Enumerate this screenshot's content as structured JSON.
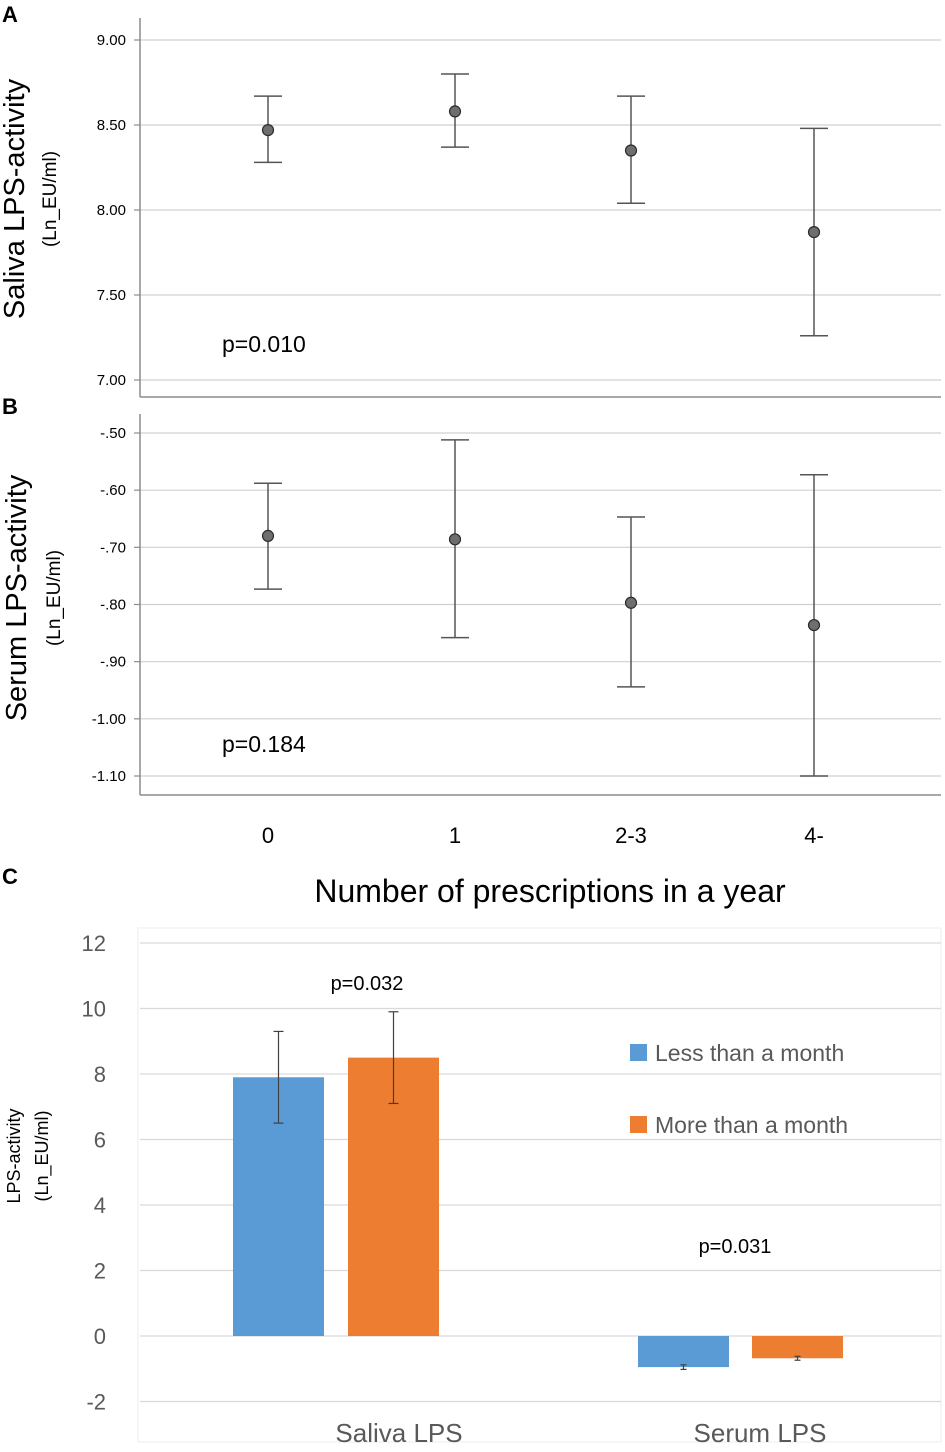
{
  "chart_data": [
    {
      "panel": "A",
      "type": "scatter",
      "subtype": "error-bar plot",
      "ylabel": "Saliva LPS-activity",
      "ylabel_unit": "(Ln_EU/ml)",
      "ylim": [
        7.0,
        9.1
      ],
      "yticks": [
        "7.00",
        "7.50",
        "8.00",
        "8.50",
        "9.00"
      ],
      "categories": [
        "0",
        "1",
        "2-3",
        "4-"
      ],
      "points": [
        {
          "x": "0",
          "mean": 8.47,
          "low": 8.28,
          "high": 8.67
        },
        {
          "x": "1",
          "mean": 8.58,
          "low": 8.37,
          "high": 8.8
        },
        {
          "x": "2-3",
          "mean": 8.35,
          "low": 8.04,
          "high": 8.67
        },
        {
          "x": "4-",
          "mean": 7.87,
          "low": 7.26,
          "high": 8.48
        }
      ],
      "annotation": "p=0.010",
      "grid": true
    },
    {
      "panel": "B",
      "type": "scatter",
      "subtype": "error-bar plot",
      "ylabel": "Serum LPS-activity",
      "ylabel_unit": "(Ln_EU/ml)",
      "ylim": [
        -1.13,
        -0.47
      ],
      "yticks": [
        "-1.10",
        "-1.00",
        "-.90",
        "-.80",
        "-.70",
        "-.60",
        "-.50"
      ],
      "categories": [
        "0",
        "1",
        "2-3",
        "4-"
      ],
      "points": [
        {
          "x": "0",
          "mean": -0.68,
          "low": -0.773,
          "high": -0.588
        },
        {
          "x": "1",
          "mean": -0.686,
          "low": -0.858,
          "high": -0.512
        },
        {
          "x": "2-3",
          "mean": -0.797,
          "low": -0.944,
          "high": -0.647
        },
        {
          "x": "4-",
          "mean": -0.836,
          "low": -1.1,
          "high": -0.573
        }
      ],
      "annotation": "p=0.184",
      "xlabel": "Number of prescriptions in a year",
      "grid": true
    },
    {
      "panel": "C",
      "type": "bar",
      "ylabel": "LPS-activity",
      "ylabel_unit": "(Ln_EU/ml)",
      "ylim": [
        -2,
        12
      ],
      "yticks": [
        "-2",
        "0",
        "2",
        "4",
        "6",
        "8",
        "10",
        "12"
      ],
      "categories": [
        "Saliva LPS",
        "Serum LPS"
      ],
      "series": [
        {
          "name": "Less than a month",
          "color": "#5b9bd5",
          "values": [
            7.9,
            -0.95
          ],
          "err_low": [
            6.5,
            -1.02
          ],
          "err_high": [
            9.3,
            -0.88
          ]
        },
        {
          "name": "More than a month",
          "color": "#ed7d31",
          "values": [
            8.5,
            -0.68
          ],
          "err_low": [
            7.1,
            -0.74
          ],
          "err_high": [
            9.9,
            -0.62
          ]
        }
      ],
      "annotations": [
        "p=0.032",
        "p=0.031"
      ],
      "legend": "right",
      "grid": true
    }
  ]
}
